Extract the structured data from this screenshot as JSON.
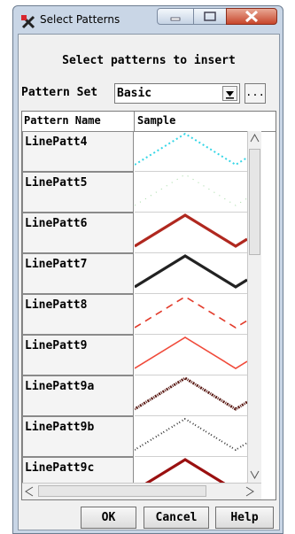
{
  "window": {
    "title": "Select Patterns"
  },
  "heading": "Select patterns to insert",
  "pattern_set": {
    "label": "Pattern Set",
    "value": "Basic",
    "more_label": "..."
  },
  "table": {
    "columns": [
      "Pattern Name",
      "Sample"
    ],
    "rows": [
      {
        "name": "LinePatt4",
        "color": "#35d6e6",
        "style": "dotted"
      },
      {
        "name": "LinePatt5",
        "color": "#9fd89f",
        "style": "faint"
      },
      {
        "name": "LinePatt6",
        "color": "#b0281f",
        "style": "solid-thick"
      },
      {
        "name": "LinePatt7",
        "color": "#222222",
        "style": "solid-thick"
      },
      {
        "name": "LinePatt8",
        "color": "#e23a2a",
        "style": "dashed"
      },
      {
        "name": "LinePatt9",
        "color": "#f04a3a",
        "style": "solid-thin"
      },
      {
        "name": "LinePatt9a",
        "color": "#5a1a14",
        "style": "speckled"
      },
      {
        "name": "LinePatt9b",
        "color": "#333333",
        "style": "speckled-light"
      },
      {
        "name": "LinePatt9c",
        "color": "#9a1010",
        "style": "solid-thick"
      },
      {
        "name": "",
        "color": "#222222",
        "style": "solid-thick"
      }
    ]
  },
  "buttons": {
    "ok": "OK",
    "cancel": "Cancel",
    "help": "Help"
  }
}
